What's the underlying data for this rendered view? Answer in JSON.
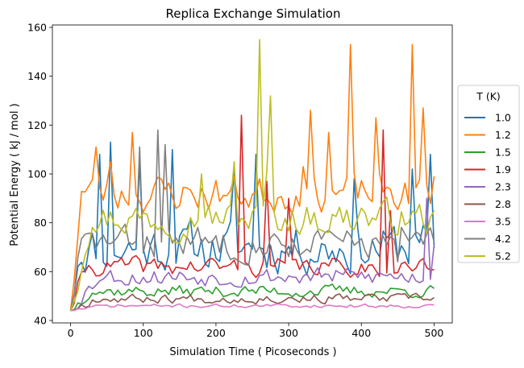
{
  "chart_data": {
    "type": "line",
    "title": "Replica Exchange Simulation",
    "xlabel": "Simulation Time ( Picoseconds )",
    "ylabel": "Potential Energy ( kJ / mol )",
    "xlim": [
      -25,
      525
    ],
    "ylim": [
      39,
      161
    ],
    "xticks": [
      0,
      100,
      200,
      300,
      400,
      500
    ],
    "yticks": [
      40,
      60,
      80,
      100,
      120,
      140,
      160
    ],
    "grid": false,
    "legend": {
      "title": "T (K)",
      "placement": "right-outside"
    },
    "x": {
      "start": 0,
      "end": 500,
      "step": 5
    },
    "series": [
      {
        "name": "1.0",
        "color": "#1f77b4",
        "base": 70,
        "amp": 16,
        "start": 44,
        "rise": 12,
        "seed": 11,
        "peaks": [
          [
            40,
            108
          ],
          [
            55,
            113
          ],
          [
            95,
            105
          ],
          [
            140,
            110
          ],
          [
            225,
            102
          ],
          [
            255,
            108
          ],
          [
            390,
            98
          ],
          [
            470,
            102
          ],
          [
            495,
            108
          ]
        ]
      },
      {
        "name": "1.2",
        "color": "#ff7f0e",
        "base": 92,
        "amp": 12,
        "start": 44,
        "rise": 15,
        "seed": 23,
        "peaks": [
          [
            35,
            111
          ],
          [
            55,
            105
          ],
          [
            85,
            117
          ],
          [
            320,
            103
          ],
          [
            330,
            126
          ],
          [
            355,
            117
          ],
          [
            385,
            153
          ],
          [
            420,
            123
          ],
          [
            470,
            153
          ],
          [
            485,
            127
          ],
          [
            500,
            99
          ]
        ]
      },
      {
        "name": "1.5",
        "color": "#2ca02c",
        "base": 52,
        "amp": 4,
        "start": 44,
        "rise": 30,
        "seed": 37,
        "peaks": []
      },
      {
        "name": "1.9",
        "color": "#d62728",
        "base": 62,
        "amp": 6,
        "start": 44,
        "rise": 20,
        "seed": 41,
        "peaks": [
          [
            235,
            124
          ],
          [
            270,
            97
          ],
          [
            300,
            90
          ],
          [
            430,
            118
          ],
          [
            440,
            85
          ]
        ]
      },
      {
        "name": "2.3",
        "color": "#9467bd",
        "base": 58,
        "amp": 6,
        "start": 44,
        "rise": 40,
        "seed": 53,
        "peaks": [
          [
            490,
            90
          ],
          [
            500,
            71
          ]
        ]
      },
      {
        "name": "2.8",
        "color": "#8c564b",
        "base": 49,
        "amp": 3,
        "start": 44,
        "rise": 40,
        "seed": 67,
        "peaks": []
      },
      {
        "name": "3.5",
        "color": "#e377c2",
        "base": 46,
        "amp": 1.2,
        "start": 44,
        "rise": 40,
        "seed": 71,
        "peaks": []
      },
      {
        "name": "4.2",
        "color": "#7f7f7f",
        "base": 72,
        "amp": 10,
        "start": 44,
        "rise": 15,
        "seed": 83,
        "peaks": [
          [
            95,
            111
          ],
          [
            120,
            118
          ],
          [
            130,
            112
          ],
          [
            330,
            68
          ],
          [
            450,
            64
          ]
        ]
      },
      {
        "name": "5.2",
        "color": "#bcbd22",
        "base": 82,
        "amp": 11,
        "start": 44,
        "rise": 30,
        "seed": 97,
        "peaks": [
          [
            180,
            100
          ],
          [
            225,
            105
          ],
          [
            260,
            155
          ],
          [
            270,
            101
          ],
          [
            275,
            132
          ],
          [
            400,
            86
          ],
          [
            500,
            85
          ]
        ]
      }
    ]
  }
}
